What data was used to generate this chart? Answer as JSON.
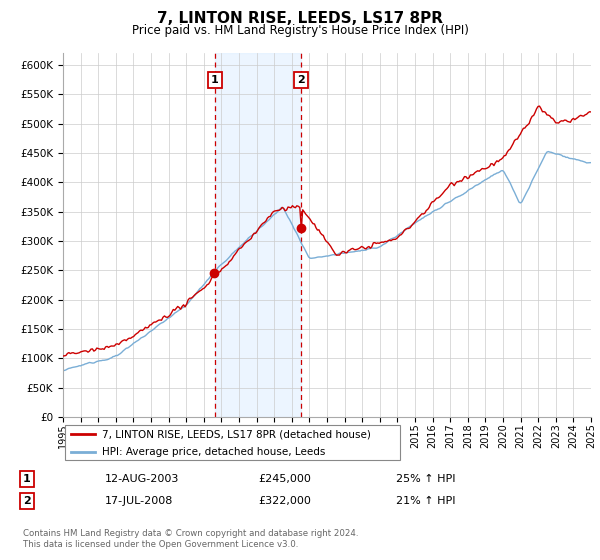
{
  "title": "7, LINTON RISE, LEEDS, LS17 8PR",
  "subtitle": "Price paid vs. HM Land Registry's House Price Index (HPI)",
  "legend_line1": "7, LINTON RISE, LEEDS, LS17 8PR (detached house)",
  "legend_line2": "HPI: Average price, detached house, Leeds",
  "annotation1_date": "12-AUG-2003",
  "annotation1_price": "£245,000",
  "annotation1_hpi": "25% ↑ HPI",
  "annotation2_date": "17-JUL-2008",
  "annotation2_price": "£322,000",
  "annotation2_hpi": "21% ↑ HPI",
  "footer": "Contains HM Land Registry data © Crown copyright and database right 2024.\nThis data is licensed under the Open Government Licence v3.0.",
  "hpi_color": "#7aaed6",
  "price_color": "#cc0000",
  "shaded_color": "#ddeeff",
  "annotation_box_color": "#cc0000",
  "ylim_min": 0,
  "ylim_max": 620000,
  "ytick_step": 50000,
  "year_start": 1995,
  "year_end": 2025,
  "sale1_year": 2003.62,
  "sale2_year": 2008.54,
  "sale1_price": 245000,
  "sale2_price": 322000
}
